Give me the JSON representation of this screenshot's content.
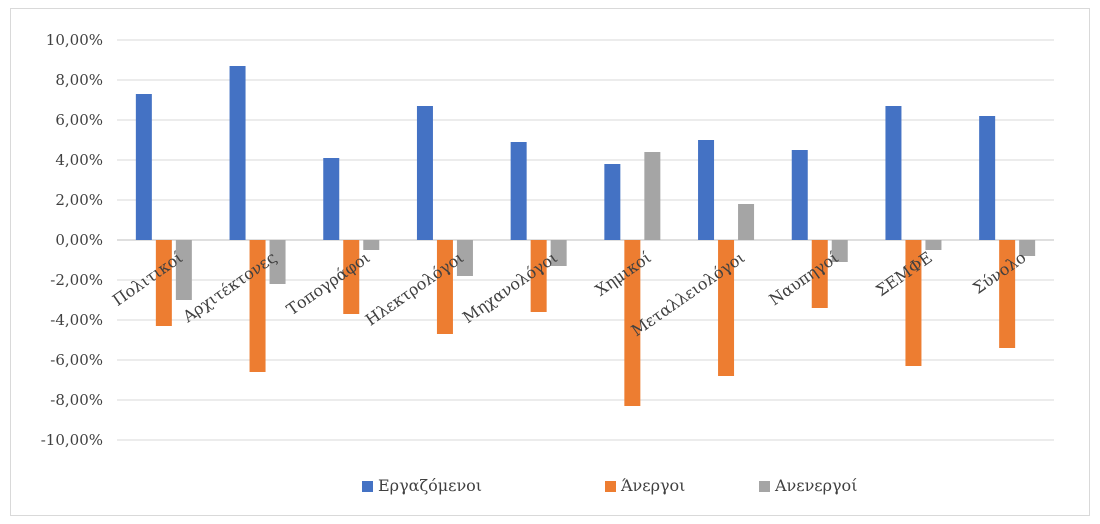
{
  "chart_data": {
    "type": "bar",
    "categories": [
      "Πολιτικοί",
      "Αρχιτέκτονες",
      "Τοπογράφοι",
      "Ηλεκτρολόγοι",
      "Μηχανολόγοι",
      "Χημικοί",
      "Μεταλλειολόγοι",
      "Ναυπηγοί",
      "ΣΕΜΦΕ",
      "Σύνολο"
    ],
    "series": [
      {
        "name": "Εργαζόμενοι",
        "color": "#4472c4",
        "values": [
          7.3,
          8.7,
          4.1,
          6.7,
          4.9,
          3.8,
          5.0,
          4.5,
          6.7,
          6.2
        ]
      },
      {
        "name": "Άνεργοι",
        "color": "#ed7d31",
        "values": [
          -4.3,
          -6.6,
          -3.7,
          -4.7,
          -3.6,
          -8.3,
          -6.8,
          -3.4,
          -6.3,
          -5.4
        ]
      },
      {
        "name": "Ανενεργοί",
        "color": "#a5a5a5",
        "values": [
          -3.0,
          -2.2,
          -0.5,
          -1.8,
          -1.3,
          4.4,
          1.8,
          -1.1,
          -0.5,
          -0.8
        ]
      }
    ],
    "ylim": [
      -10,
      10
    ],
    "yticks": [
      "10,00%",
      "8,00%",
      "6,00%",
      "4,00%",
      "2,00%",
      "0,00%",
      "-2,00%",
      "-4,00%",
      "-6,00%",
      "-8,00%",
      "-10,00%"
    ],
    "ytick_values": [
      10,
      8,
      6,
      4,
      2,
      0,
      -2,
      -4,
      -6,
      -8,
      -10
    ],
    "grid": true,
    "legend": "bottom",
    "title": "",
    "xlabel": "",
    "ylabel": ""
  }
}
